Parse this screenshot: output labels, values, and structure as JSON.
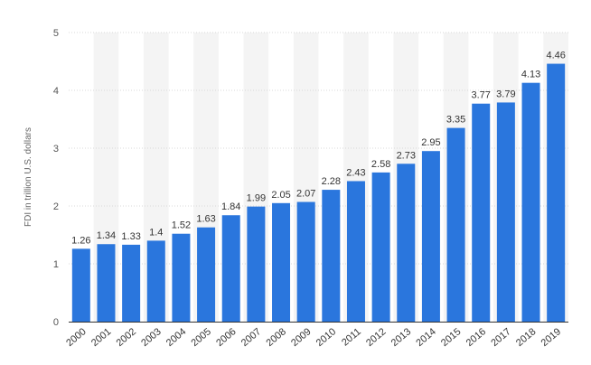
{
  "chart_data": {
    "type": "bar",
    "categories": [
      "2000",
      "2001",
      "2002",
      "2003",
      "2004",
      "2005",
      "2006",
      "2007",
      "2008",
      "2009",
      "2010",
      "2011",
      "2012",
      "2013",
      "2014",
      "2015",
      "2016",
      "2017",
      "2018",
      "2019"
    ],
    "values": [
      1.26,
      1.34,
      1.33,
      1.4,
      1.52,
      1.63,
      1.84,
      1.99,
      2.05,
      2.07,
      2.28,
      2.43,
      2.58,
      2.73,
      2.95,
      3.35,
      3.77,
      3.79,
      4.13,
      4.46
    ],
    "data_labels": [
      "1.26",
      "1.34",
      "1.33",
      "1.4",
      "1.52",
      "1.63",
      "1.84",
      "1.99",
      "2.05",
      "2.07",
      "2.28",
      "2.43",
      "2.58",
      "2.73",
      "2.95",
      "3.35",
      "3.77",
      "3.79",
      "4.13",
      "4.46"
    ],
    "title": "",
    "xlabel": "",
    "ylabel": "FDI in trillion U.S. dollars",
    "ylim": [
      0,
      5
    ],
    "yticks": [
      0,
      1,
      2,
      3,
      4,
      5
    ],
    "grid": true,
    "legend": "none",
    "colors": {
      "bar": "#2a76dd",
      "band": "#f4f4f4",
      "grid": "#d9d9d9"
    }
  }
}
